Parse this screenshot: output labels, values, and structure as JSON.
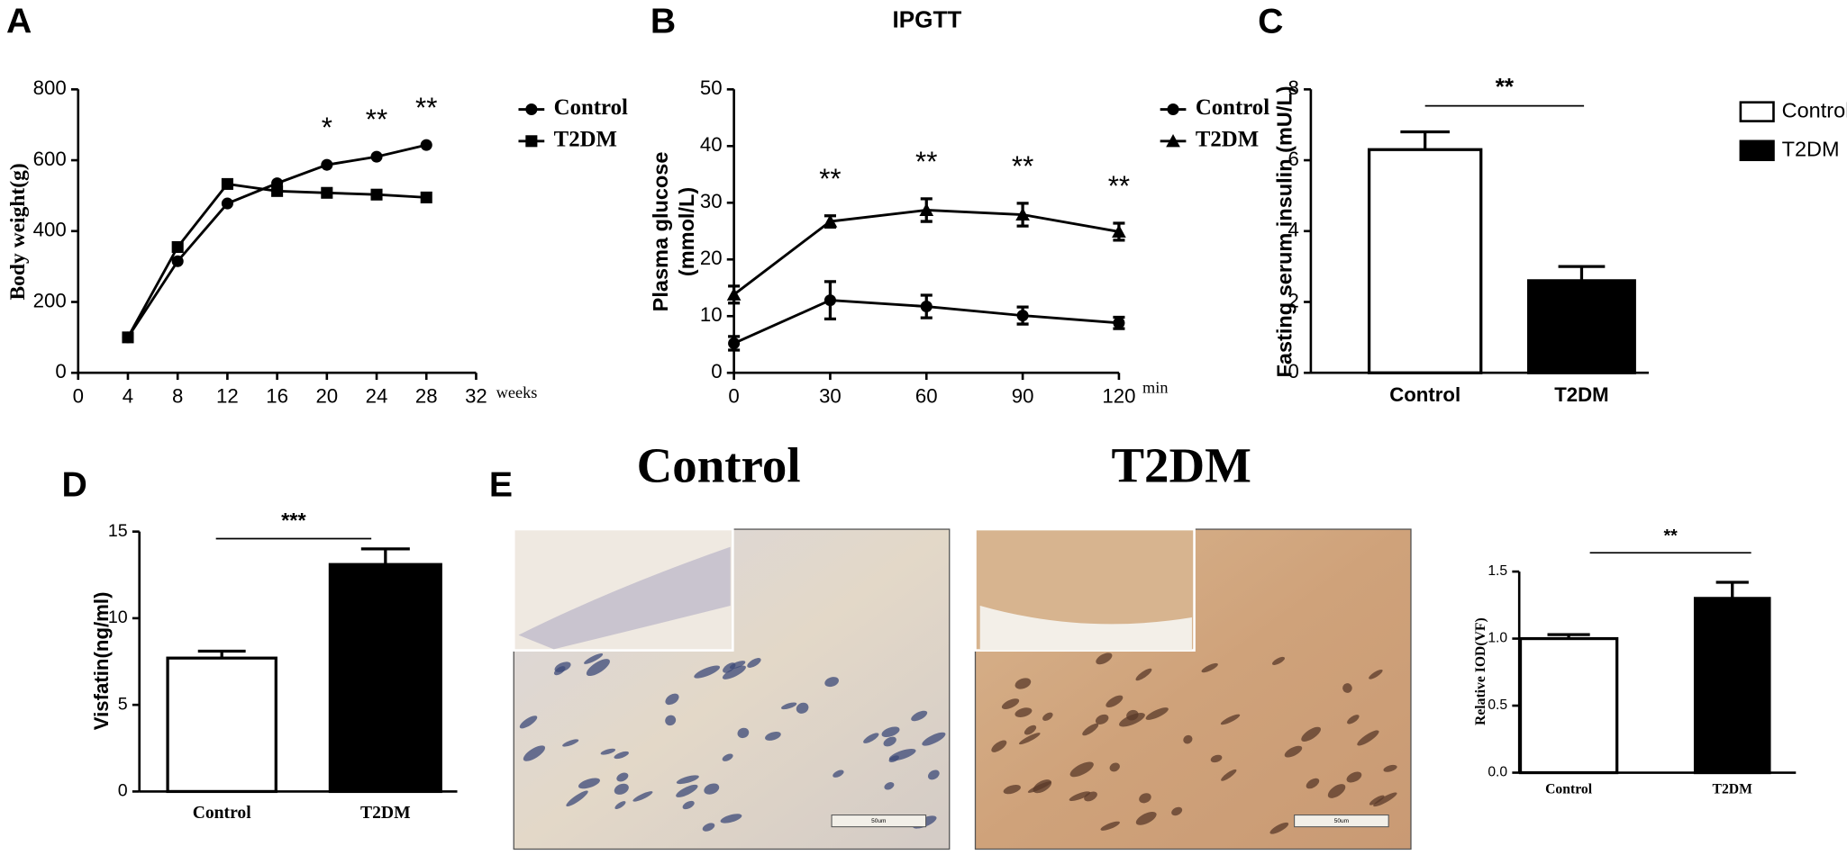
{
  "chart_data": [
    {
      "type": "line",
      "panel_label": "A",
      "x": [
        4,
        8,
        12,
        16,
        20,
        24,
        28
      ],
      "xlim": [
        0,
        32
      ],
      "xticks": [
        0,
        4,
        8,
        12,
        16,
        20,
        24,
        28,
        32
      ],
      "xlabel": "weeks",
      "ylabel": "Body weight(g)",
      "ylim": [
        0,
        800
      ],
      "yticks": [
        0,
        200,
        400,
        600,
        800
      ],
      "series": [
        {
          "name": "Control",
          "color": "#000000",
          "marker": "circle",
          "values": [
            100,
            315,
            478,
            535,
            587,
            610,
            643
          ]
        },
        {
          "name": "T2DM",
          "color": "#000000",
          "marker": "square",
          "values": [
            100,
            355,
            533,
            513,
            508,
            503,
            495
          ]
        }
      ],
      "annotations": [
        {
          "x": 20,
          "text": "*"
        },
        {
          "x": 24,
          "text": "**"
        },
        {
          "x": 28,
          "text": "**"
        }
      ],
      "legend": "upper right"
    },
    {
      "type": "line",
      "panel_label": "B",
      "title": "IPGTT",
      "x": [
        0,
        30,
        60,
        90,
        120
      ],
      "xlim": [
        0,
        120
      ],
      "xticks": [
        0,
        30,
        60,
        90,
        120
      ],
      "xlabel": "min",
      "ylabel": [
        "Plasma glucose",
        "(mmol/L)"
      ],
      "ylim": [
        0,
        50
      ],
      "yticks": [
        0,
        10,
        20,
        30,
        40,
        50
      ],
      "series": [
        {
          "name": "Control",
          "color": "#000000",
          "marker": "circle",
          "values": [
            5.2,
            12.8,
            11.7,
            10.1,
            8.8
          ],
          "errors": [
            1.2,
            3.3,
            2.0,
            1.5,
            1.0
          ]
        },
        {
          "name": "T2DM",
          "color": "#000000",
          "marker": "triangle",
          "values": [
            13.8,
            26.7,
            28.7,
            27.9,
            24.9
          ],
          "errors": [
            1.5,
            1.0,
            2.0,
            2.0,
            1.5
          ]
        }
      ],
      "annotations": [
        {
          "x": 30,
          "text": "**"
        },
        {
          "x": 60,
          "text": "**"
        },
        {
          "x": 90,
          "text": "**"
        },
        {
          "x": 120,
          "text": "**"
        }
      ],
      "legend": "upper right"
    },
    {
      "type": "bar",
      "panel_label": "C",
      "categories": [
        "Control",
        "T2DM"
      ],
      "values": [
        6.3,
        2.6
      ],
      "errors": [
        0.5,
        0.4
      ],
      "colors": [
        "#ffffff",
        "#000000"
      ],
      "ylim": [
        0,
        8
      ],
      "yticks": [
        0,
        2,
        4,
        6,
        8
      ],
      "ylabel": "Fasting serum insulin (mU/L)",
      "significance": "**",
      "legend": "upper right"
    },
    {
      "type": "bar",
      "panel_label": "D",
      "categories": [
        "Control",
        "T2DM"
      ],
      "values": [
        7.7,
        13.1
      ],
      "errors": [
        0.4,
        0.9
      ],
      "colors": [
        "#ffffff",
        "#000000"
      ],
      "ylim": [
        0,
        15
      ],
      "yticks": [
        0,
        5,
        10,
        15
      ],
      "ylabel": "Visfatin(ng/ml)",
      "significance": "***"
    },
    {
      "type": "bar",
      "categories": [
        "Control",
        "T2DM"
      ],
      "values": [
        1.0,
        1.3
      ],
      "errors": [
        0.03,
        0.12
      ],
      "colors": [
        "#ffffff",
        "#000000"
      ],
      "ylim": [
        0,
        1.5
      ],
      "yticks": [
        {
          "value": 0,
          "label": "0.0"
        },
        0.5,
        {
          "value": 1,
          "label": "1.0"
        },
        1.5
      ],
      "ylabel": "Relative IOD(VF)",
      "significance": "**"
    }
  ],
  "figure_e": {
    "panel_label": "E",
    "image_titles": [
      "Control",
      "T2DM"
    ],
    "scale_bar": "50um"
  }
}
